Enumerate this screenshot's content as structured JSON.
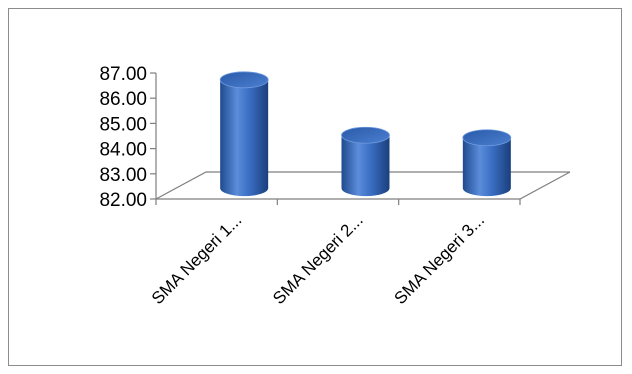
{
  "chart_data": {
    "type": "bar",
    "style": "3d-cylinder",
    "title": "",
    "xlabel": "",
    "ylabel": "",
    "categories": [
      "SMA Negeri 1...",
      "SMA Negeri 2...",
      "SMA Negeri 3..."
    ],
    "values": [
      86.3,
      84.1,
      84.0
    ],
    "ylim": [
      82,
      87
    ],
    "yticks": [
      "82.00",
      "83.00",
      "84.00",
      "85.00",
      "86.00",
      "87.00"
    ],
    "grid": false,
    "legend": "none",
    "colors": {
      "bar": "#3b6fc4",
      "bar_dark": "#1f4a8e",
      "bar_light": "#7fa8e8",
      "axis": "#7f7f7f"
    }
  }
}
